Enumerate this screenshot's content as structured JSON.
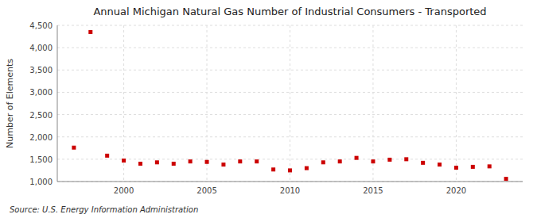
{
  "chart_data": {
    "type": "scatter",
    "title": "Annual Michigan Natural Gas Number of Industrial Consumers - Transported",
    "y_label": "Number of Elements",
    "source": "Source: U.S. Energy Information Administration",
    "x": [
      1997,
      1998,
      1999,
      2000,
      2001,
      2002,
      2003,
      2004,
      2005,
      2006,
      2007,
      2008,
      2009,
      2010,
      2011,
      2012,
      2013,
      2014,
      2015,
      2016,
      2017,
      2018,
      2019,
      2020,
      2021,
      2022,
      2023
    ],
    "values": [
      1760,
      4350,
      1580,
      1470,
      1400,
      1430,
      1400,
      1450,
      1440,
      1380,
      1450,
      1450,
      1270,
      1250,
      1300,
      1430,
      1450,
      1530,
      1450,
      1490,
      1500,
      1420,
      1380,
      1310,
      1330,
      1340,
      1060
    ],
    "color": "#cc0000",
    "marker": "square",
    "grid": true,
    "xlim": [
      1996,
      2024
    ],
    "ylim": [
      1000,
      4500
    ],
    "xticks": [
      2000,
      2005,
      2010,
      2015,
      2020
    ],
    "yticks": [
      {
        "value": 1000,
        "label": "1,000"
      },
      {
        "value": 1500,
        "label": "1,500"
      },
      {
        "value": 2000,
        "label": "2,000"
      },
      {
        "value": 2500,
        "label": "2,500"
      },
      {
        "value": 3000,
        "label": "3,000"
      },
      {
        "value": 3500,
        "label": "3,500"
      },
      {
        "value": 4000,
        "label": "4,000"
      },
      {
        "value": 4500,
        "label": "4,500"
      }
    ]
  }
}
